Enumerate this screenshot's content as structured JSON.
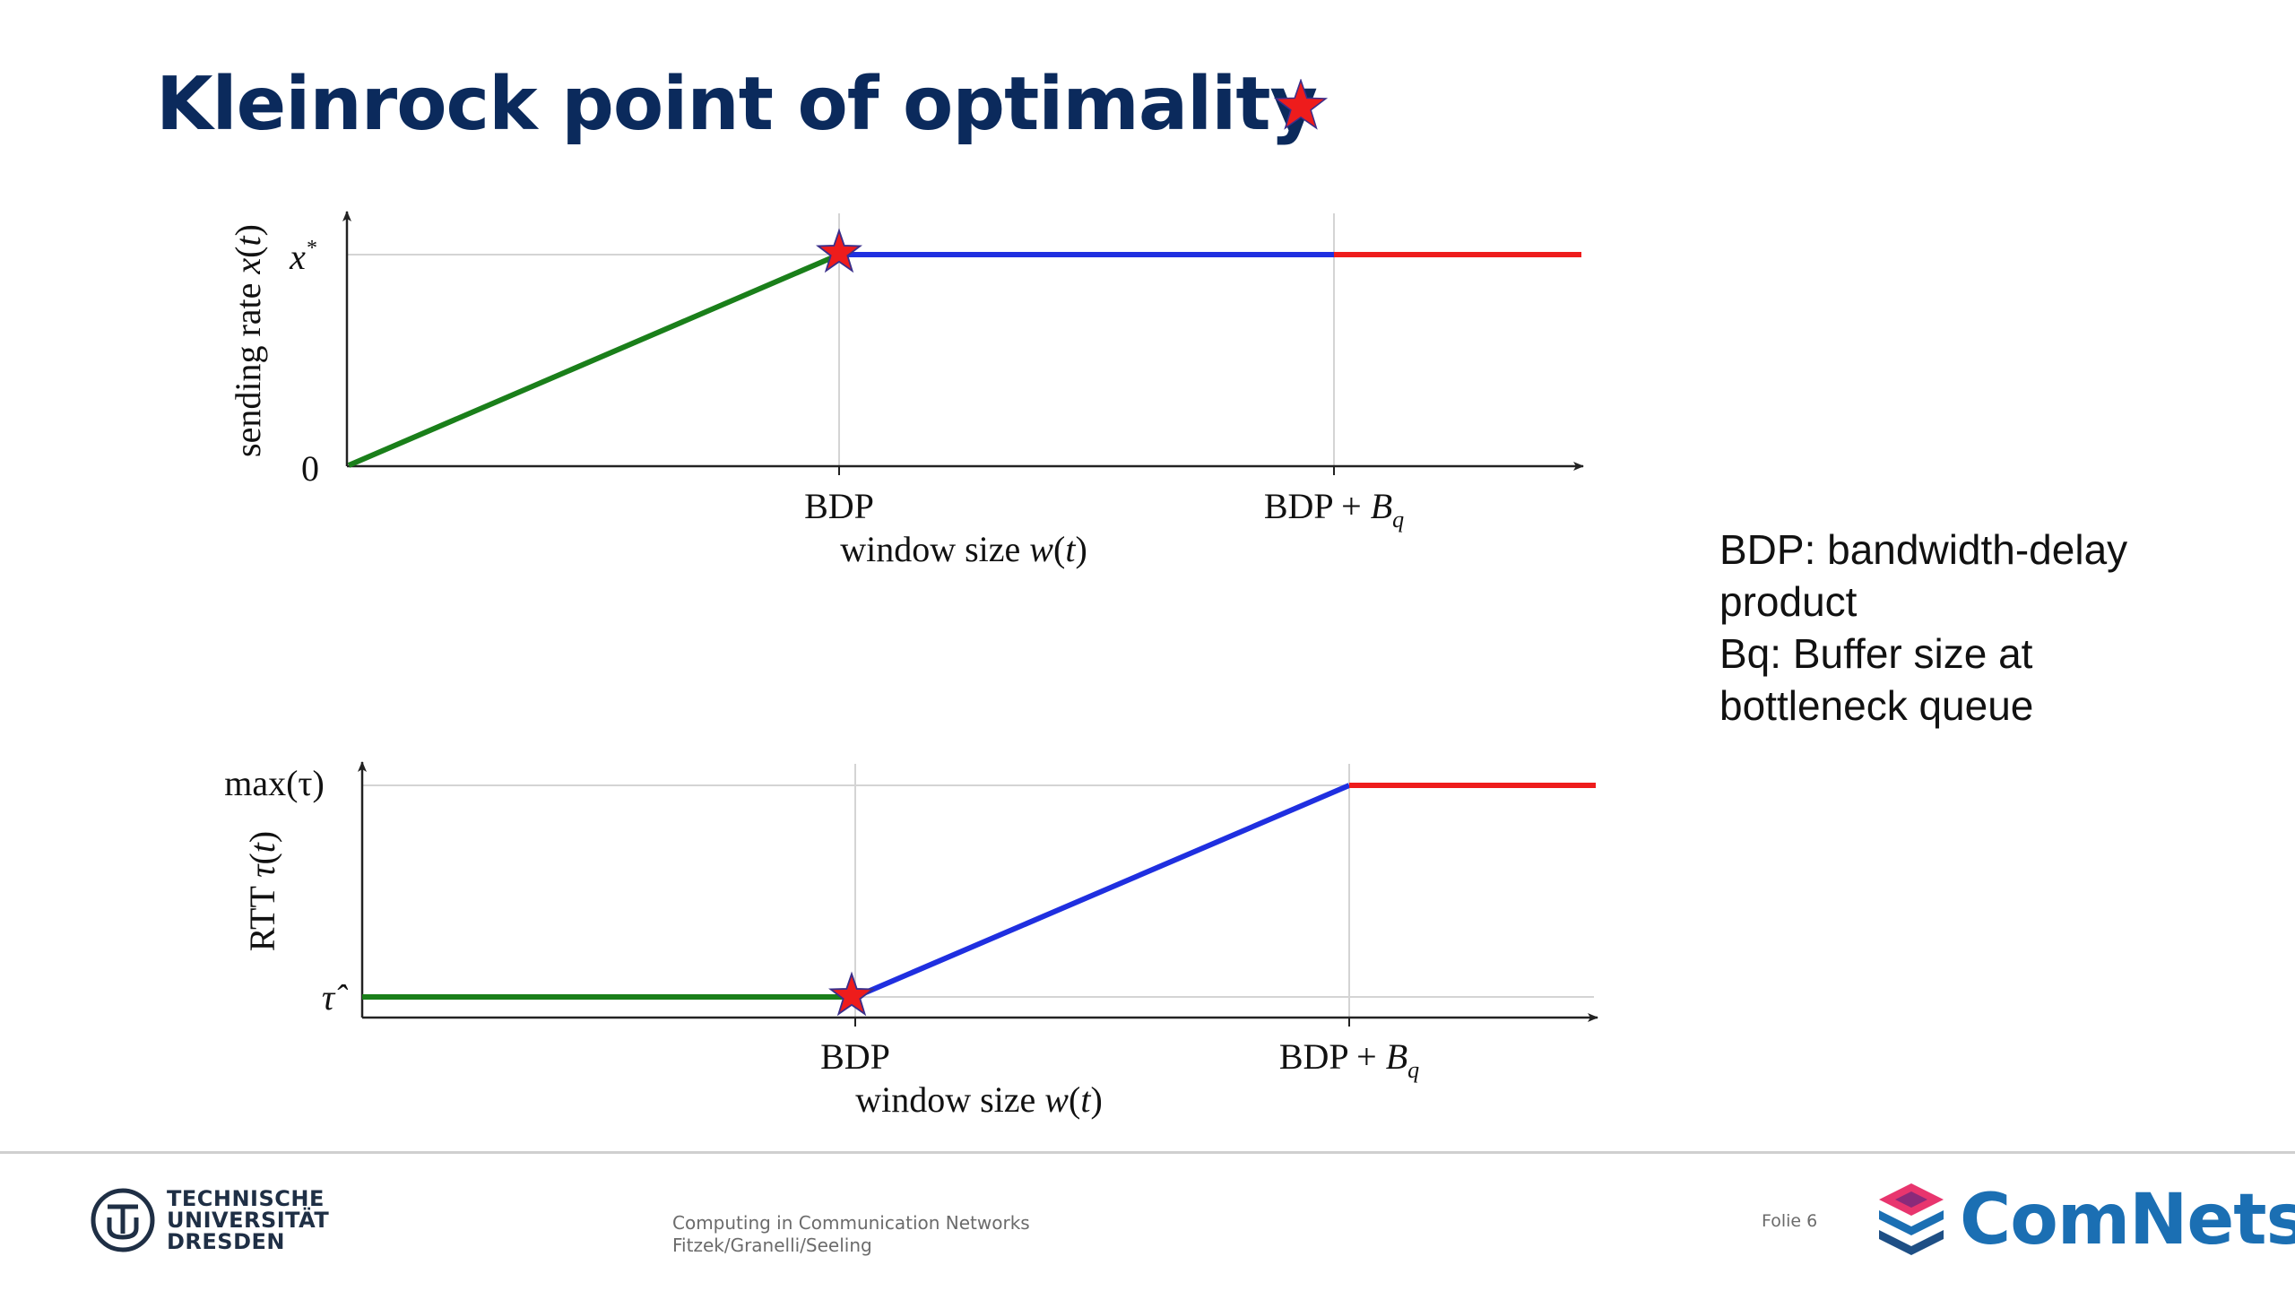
{
  "slide": {
    "title": "Kleinrock point of optimality",
    "footer": {
      "university_lines": [
        "TECHNISCHE",
        "UNIVERSITÄT",
        "DRESDEN"
      ],
      "course": "Computing in Communication Networks",
      "authors": "Fitzek/Granelli/Seeling",
      "page_label": "Folie 6",
      "brand": "ComNets"
    }
  },
  "legend": {
    "line1": "BDP: bandwidth-delay",
    "line2": "product",
    "line3": "Bq: Buffer size at",
    "line4": "bottleneck queue"
  },
  "colors": {
    "title": "#0b2a5c",
    "green_segment": "#1a7f1a",
    "blue_segment": "#1f2fe0",
    "red_segment": "#ee1c1c",
    "star_fill": "#ee1c1c",
    "star_stroke": "#3a2f8a",
    "brand": "#1b6fb3"
  },
  "icons": {
    "title_marker": "red-star-icon",
    "optimum_marker": "red-star-icon",
    "university_logo": "tu-dresden-logo",
    "brand_logo": "comnets-stacked-layers-logo"
  },
  "chart_data": [
    {
      "type": "line",
      "ylabel": "sending rate x(t)",
      "xlabel": "window size w(t)",
      "x_ticks": [
        "BDP",
        "BDP + Bq"
      ],
      "y_ticks": [
        "0",
        "x*"
      ],
      "series": [
        {
          "segment": "green",
          "x": [
            "0",
            "BDP"
          ],
          "y": [
            "0",
            "x*"
          ]
        },
        {
          "segment": "blue",
          "x": [
            "BDP",
            "BDP + Bq"
          ],
          "y": [
            "x*",
            "x*"
          ]
        },
        {
          "segment": "red",
          "x": [
            "BDP + Bq",
            "beyond"
          ],
          "y": [
            "x*",
            "x*"
          ]
        }
      ],
      "marker": {
        "symbol": "star",
        "x": "BDP",
        "y": "x*"
      },
      "grid": true
    },
    {
      "type": "line",
      "ylabel": "RTT τ(t)",
      "xlabel": "window size w(t)",
      "x_ticks": [
        "BDP",
        "BDP + Bq"
      ],
      "y_ticks": [
        "τ̂",
        "max(τ)"
      ],
      "series": [
        {
          "segment": "green",
          "x": [
            "0",
            "BDP"
          ],
          "y": [
            "τ̂",
            "τ̂"
          ]
        },
        {
          "segment": "blue",
          "x": [
            "BDP",
            "BDP + Bq"
          ],
          "y": [
            "τ̂",
            "max(τ)"
          ]
        },
        {
          "segment": "red",
          "x": [
            "BDP + Bq",
            "beyond"
          ],
          "y": [
            "max(τ)",
            "max(τ)"
          ]
        }
      ],
      "marker": {
        "symbol": "star",
        "x": "BDP",
        "y": "τ̂"
      },
      "grid": true
    }
  ]
}
